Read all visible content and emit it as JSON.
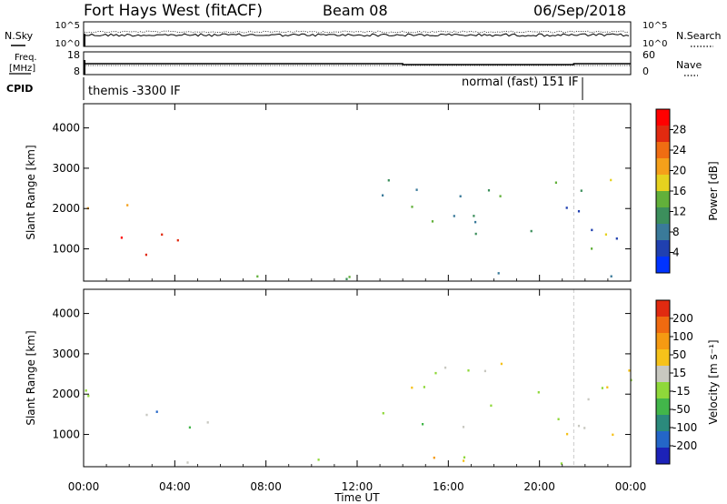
{
  "header": {
    "station": "Fort Hays West (fitACF)",
    "beam": "Beam 08",
    "date": "06/Sep/2018"
  },
  "side_labels": {
    "nsky": "N.Sky",
    "freq_line1": "Freq.",
    "freq_line2": "[MHz]",
    "cpid": "CPID",
    "nsearch": "N.Search",
    "nave": "Nave"
  },
  "noise_panel": {
    "left_ticks": [
      "10^5",
      "10^0"
    ],
    "right_ticks": [
      "10^5",
      "10^0"
    ]
  },
  "freq_panel": {
    "left_ticks": [
      "18",
      "8"
    ],
    "right_ticks": [
      "60",
      "0"
    ]
  },
  "cpid_panel": {
    "left_label": "themis -3300 IF",
    "right_label": "normal (fast) 151 IF",
    "switch_time_hours": 21.5
  },
  "chart_data": [
    {
      "type": "heatmap",
      "quantity": "power",
      "xlabel": "",
      "ylabel": "Slant Range [km]",
      "xlim": [
        0,
        24
      ],
      "ylim": [
        200,
        4600
      ],
      "yticks": [
        1000,
        2000,
        3000,
        4000
      ],
      "colorbar": {
        "label": "Power [dB]",
        "ticks": [
          "28",
          "24",
          "20",
          "16",
          "12",
          "8",
          "4"
        ],
        "colors": [
          "#0033ff",
          "#2040b0",
          "#3a7a9a",
          "#3c8f5c",
          "#62b03a",
          "#e6d21f",
          "#f5a01a",
          "#f06d12",
          "#e12a10",
          "#ff0000"
        ]
      },
      "regions": [
        {
          "t0": 0.0,
          "t1": 2.4,
          "r0": 1900,
          "r1": 2500,
          "level": 0.45
        },
        {
          "t0": 1.5,
          "t1": 5.5,
          "r0": 800,
          "r1": 1700,
          "level": 0.9
        },
        {
          "t0": 0.0,
          "t1": 24.0,
          "r0": 250,
          "r1": 450,
          "level": 0.3
        },
        {
          "t0": 13.0,
          "t1": 24.0,
          "r0": 1000,
          "r1": 2800,
          "level": 0.35
        }
      ]
    },
    {
      "type": "heatmap",
      "quantity": "velocity",
      "xlabel": "Time UT",
      "ylabel": "Slant Range [km]",
      "xlim": [
        0,
        24
      ],
      "ylim": [
        200,
        4600
      ],
      "yticks": [
        1000,
        2000,
        3000,
        4000
      ],
      "xticks": [
        "00:00",
        "04:00",
        "08:00",
        "12:00",
        "16:00",
        "20:00",
        "00:00"
      ],
      "colorbar": {
        "label": "Velocity [m s⁻¹]",
        "ticks": [
          "200",
          "100",
          "50",
          "15",
          "-15",
          "-50",
          "-100",
          "-200"
        ],
        "colors": [
          "#1c22b8",
          "#2466c8",
          "#2b8a7c",
          "#42b64a",
          "#8fd83a",
          "#c8c8c0",
          "#f6c21a",
          "#f59a12",
          "#f06a10",
          "#e12a10"
        ]
      },
      "regions": [
        {
          "t0": 0.0,
          "t1": 2.4,
          "r0": 1900,
          "r1": 2500,
          "level": 0.5
        },
        {
          "t0": 1.5,
          "t1": 5.5,
          "r0": 800,
          "r1": 1700,
          "level": 0.35
        },
        {
          "t0": 4.0,
          "t1": 24.0,
          "r0": 250,
          "r1": 500,
          "level": 0.6
        },
        {
          "t0": 13.0,
          "t1": 24.0,
          "r0": 1000,
          "r1": 2800,
          "level": 0.5
        }
      ]
    }
  ]
}
